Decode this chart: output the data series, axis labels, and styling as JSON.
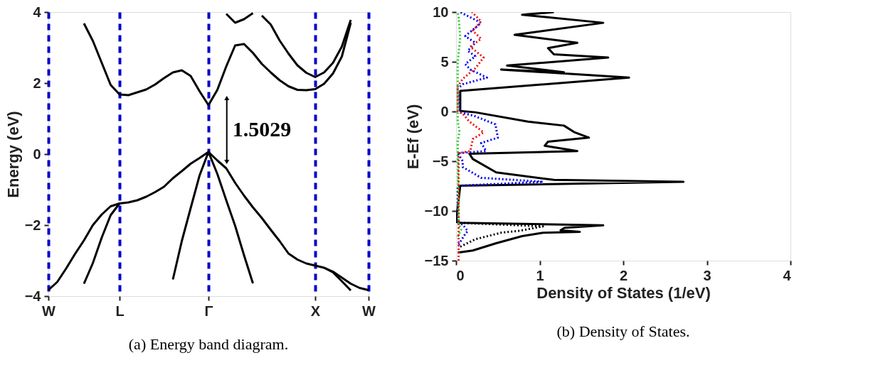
{
  "chart_data": [
    {
      "type": "line",
      "ylabel": "Energy (eV)",
      "categories": [
        "W",
        null,
        null,
        null,
        null,
        null,
        null,
        null,
        "L",
        null,
        null,
        null,
        null,
        null,
        null,
        null,
        null,
        null,
        "Γ",
        null,
        null,
        null,
        null,
        null,
        null,
        null,
        null,
        null,
        null,
        null,
        "X",
        null,
        null,
        null,
        null,
        null,
        "W"
      ],
      "ylim": [
        -4,
        4
      ],
      "yticks": [
        -4,
        -2,
        0,
        2,
        4
      ],
      "line_style": "solid",
      "grid": "x",
      "series": [
        {
          "color": "#000000",
          "values": [
            null,
            null,
            null,
            null,
            3.68,
            3.19,
            2.57,
            1.95,
            1.68,
            1.66,
            1.74,
            1.82,
            1.96,
            2.14,
            2.3,
            2.36,
            2.2,
            1.77,
            1.38,
            1.81,
            2.47,
            3.06,
            3.1,
            2.85,
            2.54,
            2.3,
            2.08,
            1.91,
            1.81,
            1.8,
            1.83,
            1.98,
            2.27,
            2.75,
            3.7,
            null,
            null
          ]
        },
        {
          "color": "#000000",
          "values": [
            null,
            null,
            null,
            null,
            null,
            null,
            null,
            null,
            null,
            null,
            null,
            null,
            null,
            null,
            null,
            null,
            null,
            null,
            null,
            null,
            3.95,
            3.7,
            3.8,
            3.97,
            null,
            null,
            null,
            null,
            null,
            null,
            null,
            null,
            null,
            null,
            null,
            null,
            null
          ]
        },
        {
          "color": "#000000",
          "values": [
            null,
            null,
            null,
            null,
            null,
            null,
            null,
            null,
            null,
            null,
            null,
            null,
            null,
            null,
            null,
            null,
            null,
            null,
            null,
            null,
            null,
            null,
            null,
            null,
            3.9,
            3.65,
            3.2,
            2.83,
            2.5,
            2.29,
            2.17,
            2.3,
            2.57,
            3.03,
            3.78,
            null,
            null
          ]
        },
        {
          "color": "#000000",
          "values": [
            -3.83,
            -3.6,
            -3.22,
            -2.81,
            -2.43,
            -2.0,
            -1.7,
            -1.47,
            -1.39,
            -1.36,
            -1.3,
            -1.2,
            -1.07,
            -0.92,
            -0.68,
            -0.48,
            -0.27,
            -0.11,
            0.06,
            -0.18,
            -0.4,
            -0.81,
            -1.17,
            -1.5,
            -1.8,
            -2.13,
            -2.45,
            -2.8,
            -2.97,
            -3.08,
            -3.14,
            -3.2,
            -3.31,
            -3.48,
            -3.65,
            -3.77,
            -3.83
          ]
        },
        {
          "color": "#000000",
          "values": [
            null,
            null,
            null,
            null,
            -3.65,
            -3.07,
            -2.35,
            -1.72,
            -1.39,
            null,
            null,
            null,
            null,
            null,
            null,
            null,
            null,
            null,
            null,
            null,
            null,
            null,
            null,
            null,
            null,
            null,
            null,
            null,
            null,
            null,
            null,
            null,
            null,
            null,
            null,
            null,
            null
          ]
        },
        {
          "color": "#000000",
          "values": [
            null,
            null,
            null,
            null,
            null,
            null,
            null,
            null,
            null,
            null,
            null,
            null,
            null,
            null,
            -3.53,
            -2.45,
            -1.52,
            -0.6,
            0.06,
            null,
            null,
            null,
            null,
            null,
            null,
            null,
            null,
            null,
            null,
            null,
            null,
            null,
            null,
            null,
            null,
            null,
            null
          ]
        },
        {
          "color": "#000000",
          "values": [
            null,
            null,
            null,
            null,
            null,
            null,
            null,
            null,
            null,
            null,
            null,
            null,
            null,
            null,
            null,
            null,
            null,
            null,
            0.06,
            -0.56,
            -1.3,
            -2.02,
            -2.85,
            -3.64,
            null,
            null,
            null,
            null,
            null,
            null,
            null,
            null,
            null,
            null,
            null,
            null,
            null
          ]
        },
        {
          "color": "#000000",
          "values": [
            null,
            null,
            null,
            null,
            null,
            null,
            null,
            null,
            null,
            null,
            null,
            null,
            null,
            null,
            null,
            null,
            null,
            null,
            null,
            null,
            null,
            null,
            null,
            null,
            null,
            null,
            null,
            null,
            null,
            null,
            null,
            -3.2,
            -3.33,
            -3.58,
            -3.84,
            null,
            null
          ]
        }
      ],
      "annotations": [
        "1.5029",
        "(a) Energy band diagram."
      ]
    },
    {
      "type": "line",
      "xlabel": "Density of States (1/eV)",
      "ylabel": "E-Ef (eV)",
      "xlim": [
        0,
        4
      ],
      "xticks": [
        0,
        1,
        2,
        3,
        4
      ],
      "ylim": [
        -15,
        10
      ],
      "yticks": [
        -15,
        -10,
        -5,
        0,
        5,
        10
      ],
      "series": [
        {
          "color": "#000000",
          "line_style": "solid",
          "x": [
            0.02,
            0.2,
            0.48,
            0.79,
            1.04,
            1.48,
            1.25,
            1.3,
            1.76,
            0.05,
            0,
            0.05,
            2.72,
            1.17,
            0.48,
            0.2,
            0.16,
            1.45,
            1.06,
            1.1,
            1.59,
            1.42,
            1.29,
            0.86,
            0.23,
            0.05,
            0.05,
            2.07,
            0.54,
            1.29,
            0.61,
            1.82,
            1.17,
            1.1,
            1.45,
            0.7,
            1.76,
            0.79,
            1.17
          ],
          "values": [
            -14.19,
            -13.98,
            -13.25,
            -12.54,
            -12.19,
            -12.1,
            -11.95,
            -11.7,
            -11.45,
            -11.2,
            -11.1,
            -7.47,
            -7.07,
            -6.88,
            -6.13,
            -4.78,
            -4.25,
            -3.98,
            -3.44,
            -3.04,
            -2.63,
            -2.1,
            -1.42,
            -1.02,
            -0.08,
            0.05,
            2.07,
            3.41,
            4.22,
            3.95,
            4.62,
            5.43,
            5.75,
            6.37,
            6.91,
            7.72,
            8.92,
            9.73,
            10.0
          ]
        },
        {
          "color": "#000000",
          "line_style": "dotted",
          "x": [
            0.05,
            0.23,
            0.54,
            0.76,
            1.04,
            0.05
          ],
          "values": [
            -13.6,
            -12.85,
            -12.19,
            -12.0,
            -11.55,
            -11.2
          ]
        },
        {
          "color": "#0000ee",
          "line_style": "dotted",
          "x": [
            0.03,
            0.11,
            0.14,
            0.08,
            0.02,
            0.02,
            1.04,
            0.3,
            0.08,
            0.08,
            0.02,
            0.36,
            0.3,
            0.5,
            0.47,
            0.23,
            0.05,
            0.02,
            0.08,
            0.37,
            0.17,
            0.11,
            0.23,
            0.14,
            0.23,
            0.11,
            0.3,
            0.11,
            0.05
          ],
          "values": [
            -13.39,
            -12.31,
            -12.04,
            -11.37,
            -11.2,
            -7.47,
            -7.07,
            -6.67,
            -5.59,
            -5.0,
            -4.2,
            -3.98,
            -3.17,
            -2.63,
            -1.29,
            -0.48,
            -0.08,
            2.3,
            2.74,
            3.41,
            4.22,
            4.76,
            5.56,
            6.1,
            6.91,
            7.58,
            8.92,
            9.73,
            10.0
          ]
        },
        {
          "color": "#22cc22",
          "line_style": "dotted",
          "x": [
            0.02,
            0.06,
            0.03,
            0.02,
            0.04,
            0.02,
            0.02,
            0.05,
            0.03,
            0.02
          ],
          "values": [
            -12.6,
            -11.9,
            -11.2,
            -3.0,
            -2.0,
            -1.0,
            5.0,
            7.5,
            9.5,
            10.0
          ]
        },
        {
          "color": "#ee1111",
          "line_style": "dotted",
          "x": [
            0.03,
            0.03,
            0.17,
            0.2,
            0.33,
            0.16,
            0.08,
            0.02,
            0.02,
            0.08,
            0.23,
            0.33,
            0.17,
            0.3,
            0.2,
            0.3,
            0.19
          ],
          "values": [
            -15.0,
            -4.2,
            -3.98,
            -2.77,
            -2.1,
            -1.02,
            -0.22,
            0.0,
            2.5,
            3.28,
            4.35,
            5.43,
            6.51,
            7.31,
            8.12,
            9.06,
            10.0
          ]
        }
      ],
      "annotations": [
        "(b) Density of States."
      ]
    }
  ]
}
